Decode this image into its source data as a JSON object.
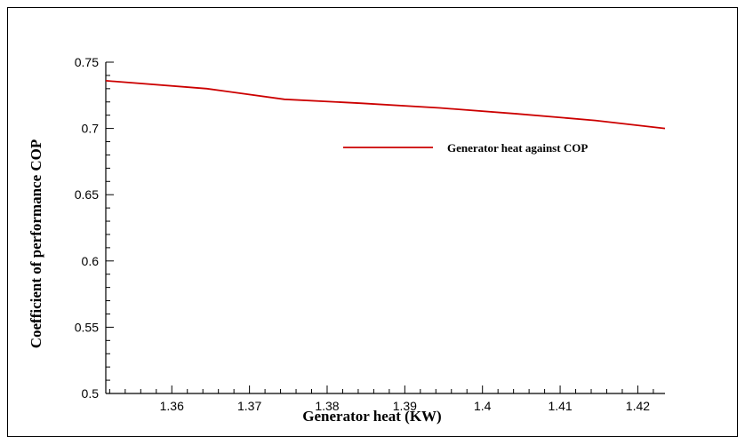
{
  "chart_data": {
    "type": "line",
    "title": "",
    "xlabel": "Generator heat (KW)",
    "ylabel": "Coefficient of performance COP",
    "xlim": [
      1.3515,
      1.4235
    ],
    "ylim": [
      0.5,
      0.75
    ],
    "xticks": [
      1.36,
      1.37,
      1.38,
      1.39,
      1.4,
      1.41,
      1.42
    ],
    "xtick_labels": [
      "1.36",
      "1.37",
      "1.38",
      "1.39",
      "1.4",
      "1.41",
      "1.42"
    ],
    "yticks": [
      0.5,
      0.55,
      0.6,
      0.65,
      0.7,
      0.75
    ],
    "ytick_labels": [
      "0.5",
      "0.55",
      "0.6",
      "0.65",
      "0.7",
      "0.75"
    ],
    "grid": false,
    "legend_position": "top-right",
    "series": [
      {
        "name": "Generator heat against COP",
        "color": "#cc0000",
        "x": [
          1.3515,
          1.3645,
          1.3745,
          1.3845,
          1.3945,
          1.4045,
          1.4145,
          1.4235
        ],
        "y": [
          0.736,
          0.73,
          0.722,
          0.719,
          0.7155,
          0.711,
          0.706,
          0.7
        ]
      }
    ]
  }
}
